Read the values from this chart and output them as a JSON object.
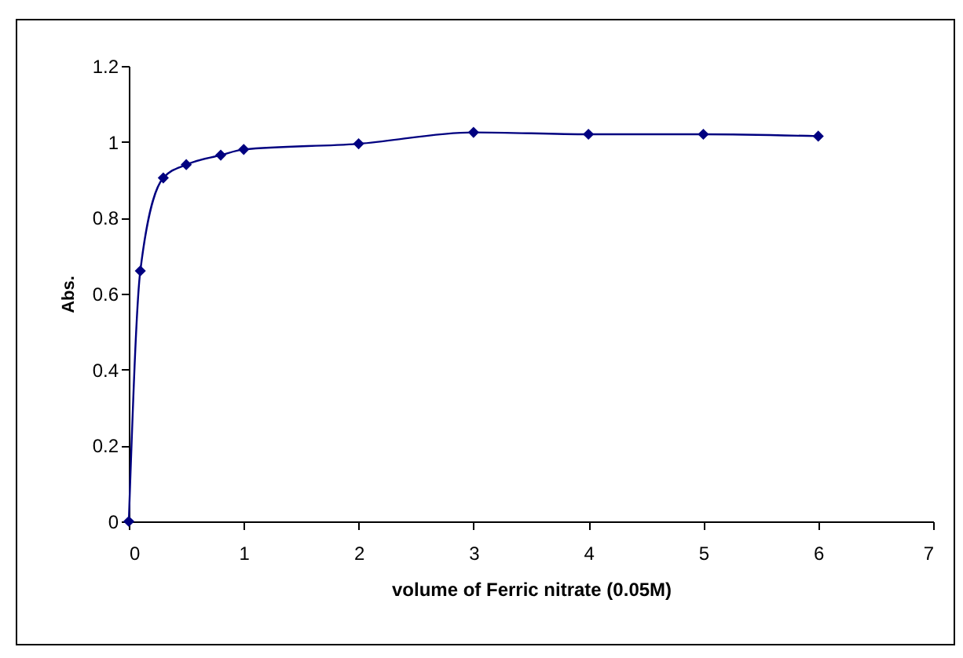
{
  "chart_data": {
    "type": "line",
    "xlabel": "volume of Ferric nitrate (0.05M)",
    "ylabel": "Abs.",
    "x": [
      0,
      0.1,
      0.3,
      0.5,
      0.8,
      1,
      2,
      3,
      4,
      5,
      6
    ],
    "series": [
      {
        "color": "#000080",
        "values": [
          0,
          0.66,
          0.905,
          0.94,
          0.965,
          0.98,
          0.995,
          1.025,
          1.02,
          1.02,
          1.015
        ]
      }
    ],
    "xlim": [
      0,
      7
    ],
    "xticks": [
      0,
      1,
      2,
      3,
      4,
      5,
      6,
      7
    ],
    "ylim": [
      0,
      1.2
    ],
    "yticks": [
      0,
      0.2,
      0.4,
      0.6,
      0.8,
      1,
      1.2
    ],
    "grid": false,
    "legend": false,
    "marker": "diamond",
    "line_style": "solid"
  }
}
